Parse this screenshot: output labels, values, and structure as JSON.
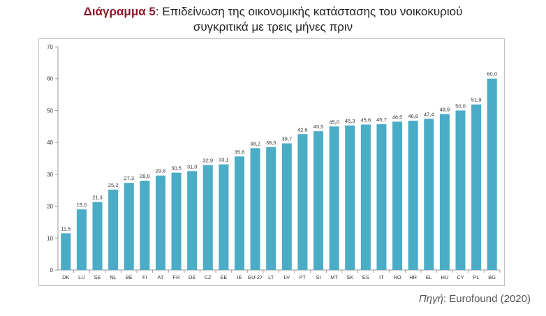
{
  "title": {
    "prefix": "Διάγραμμα 5",
    "line1": ": Επιδείνωση της οικονομικής κατάστασης του νοικοκυριού",
    "line2": "συγκριτικά με τρεις μήνες πριν"
  },
  "source": {
    "label": "Πηγή",
    "text": ": Eurofound (2020)"
  },
  "chart_data": {
    "type": "bar",
    "title": "",
    "xlabel": "",
    "ylabel": "",
    "ylim": [
      0,
      70
    ],
    "yticks": [
      0,
      10,
      20,
      30,
      40,
      50,
      60,
      70
    ],
    "grid": false,
    "bar_color": "#4bacc6",
    "categories": [
      "DK",
      "LU",
      "SE",
      "NL",
      "BE",
      "FI",
      "AT",
      "FR",
      "DE",
      "CZ",
      "EE",
      "IE",
      "EU-27",
      "LT",
      "LV",
      "PT",
      "SI",
      "MT",
      "SK",
      "ES",
      "IT",
      "RO",
      "HR",
      "EL",
      "HU",
      "CY",
      "PL",
      "BG"
    ],
    "values": [
      11.5,
      19.0,
      21.3,
      25.2,
      27.3,
      28.0,
      29.6,
      30.5,
      31.0,
      32.9,
      33.1,
      35.6,
      38.2,
      38.5,
      39.7,
      42.6,
      43.5,
      45.0,
      45.3,
      45.6,
      45.7,
      46.5,
      46.8,
      47.4,
      48.9,
      50.0,
      51.9,
      60.0
    ],
    "value_labels": [
      "11,5",
      "19,0",
      "21,3",
      "25,2",
      "27,3",
      "28,0",
      "29,6",
      "30,5",
      "31,0",
      "32,9",
      "33,1",
      "35,6",
      "38,2",
      "38,5",
      "39,7",
      "42,6",
      "43,5",
      "45,0",
      "45,3",
      "45,6",
      "45,7",
      "46,5",
      "46,8",
      "47,4",
      "48,9",
      "50,0",
      "51,9",
      "60,0"
    ]
  }
}
